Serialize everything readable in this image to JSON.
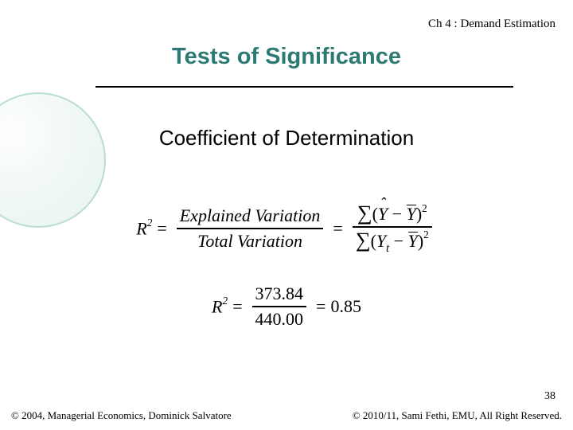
{
  "chapter": "Ch 4 : Demand Estimation",
  "title": "Tests of Significance",
  "subhead": "Coefficient of Determination",
  "eq1": {
    "lhs_var": "R",
    "lhs_sup": "2",
    "frac1_num": "Explained Variation",
    "frac1_den": "Total Variation",
    "Y": "Y",
    "Yhat": "Y",
    "Ybar": "Y",
    "t": "t",
    "eq_sign": "="
  },
  "eq2": {
    "lhs_var": "R",
    "lhs_sup": "2",
    "num": "373.84",
    "den": "440.00",
    "result": "0.85",
    "eq_sign": "="
  },
  "pagenum": "38",
  "footer_left": "© 2004,  Managerial Economics, Dominick Salvatore",
  "footer_right": "© 2010/11, Sami Fethi, EMU, All Right Reserved.",
  "style": {
    "title_color": "#2d7a74",
    "circle_border": "#b9dcd5",
    "hr_color": "#000000",
    "bg_color": "#ffffff",
    "title_fontsize": 29,
    "subhead_fontsize": 26,
    "eq_fontsize": 22,
    "footer_fontsize": 13
  }
}
